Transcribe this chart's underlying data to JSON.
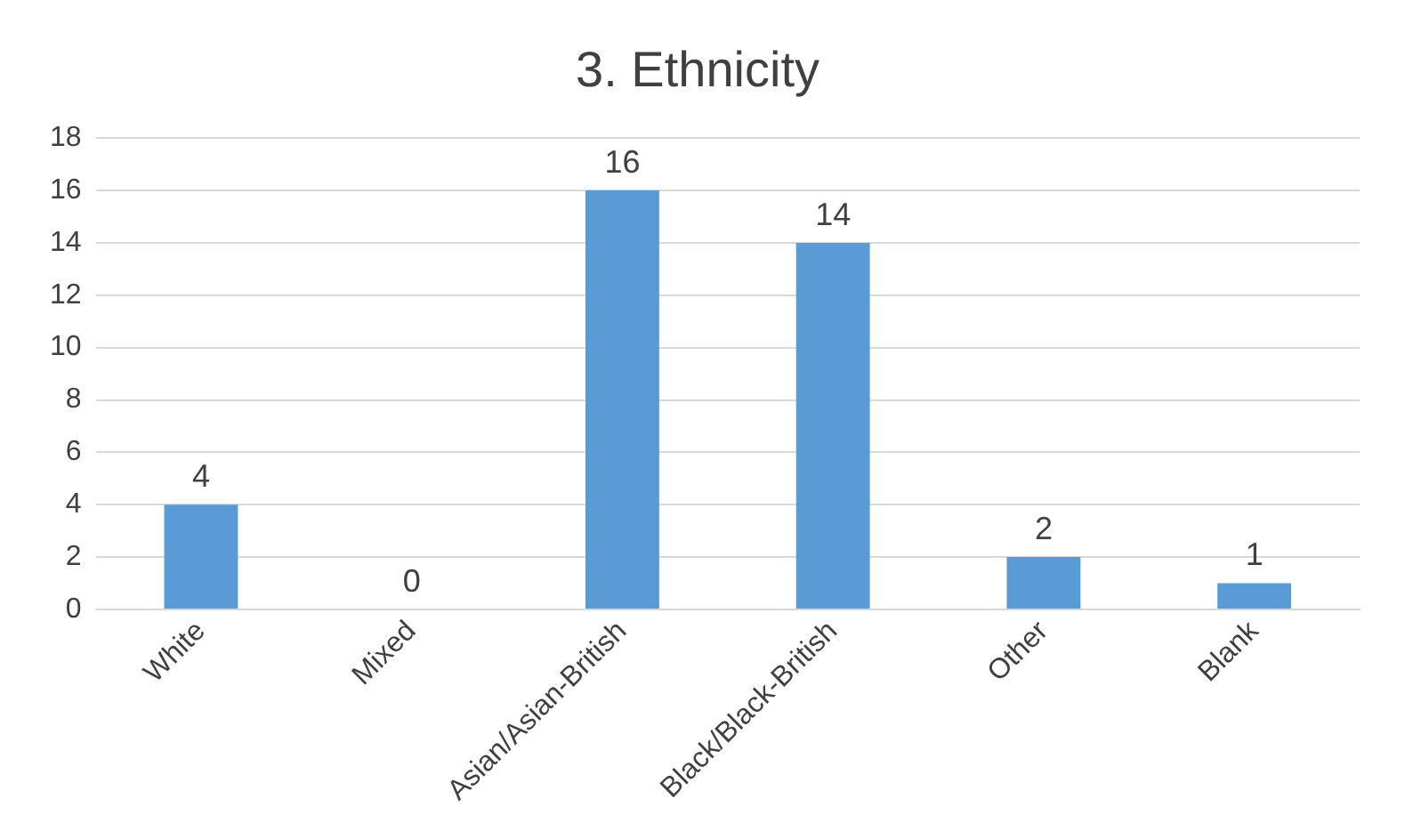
{
  "chart_data": {
    "type": "bar",
    "title": "3. Ethnicity",
    "categories": [
      "White",
      "Mixed",
      "Asian/Asian-British",
      "Black/Black-British",
      "Other",
      "Blank"
    ],
    "values": [
      4,
      0,
      16,
      14,
      2,
      1
    ],
    "color": "#5b9bd5",
    "ylim": [
      0,
      18
    ],
    "yticks": [
      0,
      2,
      4,
      6,
      8,
      10,
      12,
      14,
      16,
      18
    ],
    "grid": "y",
    "data_labels": true
  }
}
